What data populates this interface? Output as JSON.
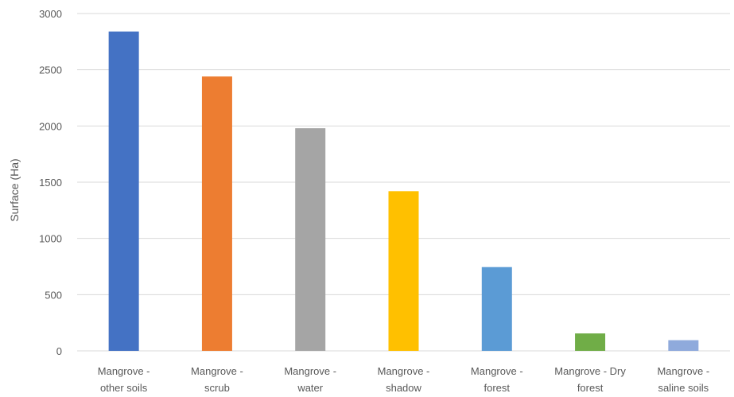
{
  "chart_data": {
    "type": "bar",
    "title": "",
    "xlabel": "",
    "ylabel": "Surface (Ha)",
    "ylim": [
      0,
      3000
    ],
    "yticks": [
      0,
      500,
      1000,
      1500,
      2000,
      2500,
      3000
    ],
    "grid": true,
    "legend": "none",
    "categories": [
      [
        "Mangrove -",
        "other soils"
      ],
      [
        "Mangrove -",
        "scrub"
      ],
      [
        "Mangrove -",
        "water"
      ],
      [
        "Mangrove -",
        "shadow"
      ],
      [
        "Mangrove -",
        "forest"
      ],
      [
        "Mangrove - Dry",
        "forest"
      ],
      [
        "Mangrove -",
        "saline soils"
      ]
    ],
    "values": [
      2840,
      2440,
      1980,
      1420,
      745,
      155,
      95
    ],
    "colors": [
      "#4472c4",
      "#ed7d31",
      "#a5a5a5",
      "#ffc000",
      "#5b9bd5",
      "#70ad47",
      "#8faadc"
    ]
  }
}
